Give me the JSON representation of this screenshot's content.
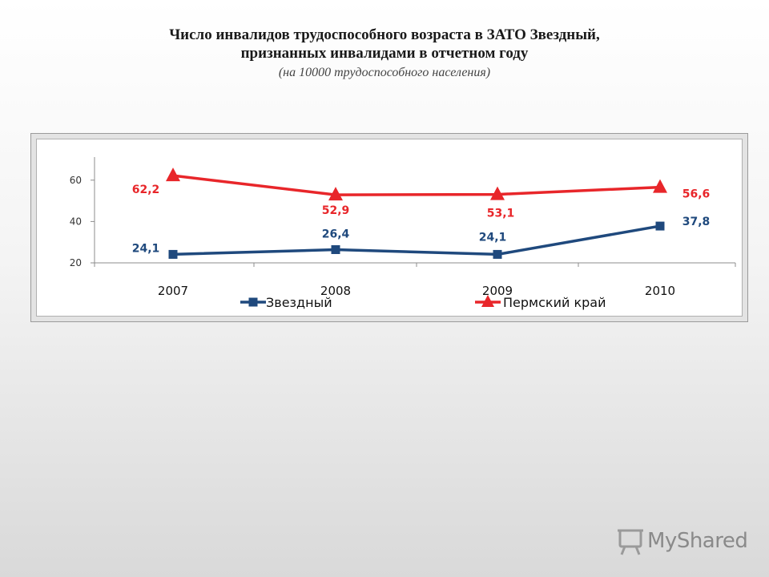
{
  "title": {
    "line1": "Число инвалидов трудоспособного возраста  в  ЗАТО Звездный,",
    "line2": "признанных инвалидами в отчетном году",
    "subtitle": "(на 10000 трудоспособного населения)"
  },
  "chart_data": {
    "type": "line",
    "categories": [
      "2007",
      "2008",
      "2009",
      "2010"
    ],
    "ylim": [
      20,
      70
    ],
    "yticks": [
      20,
      40,
      60
    ],
    "grid": false,
    "legend_position": "bottom",
    "series": [
      {
        "name": "Звездный",
        "values": [
          24.1,
          26.4,
          24.1,
          37.8
        ],
        "labels": [
          "24,1",
          "26,4",
          "24,1",
          "37,8"
        ],
        "color": "#1f497d",
        "marker": "square"
      },
      {
        "name": "Пермский край",
        "values": [
          62.2,
          52.9,
          53.1,
          56.6
        ],
        "labels": [
          "62,2",
          "52,9",
          "53,1",
          "56,6"
        ],
        "color": "#e8262a",
        "marker": "triangle"
      }
    ]
  },
  "watermark": {
    "text": "MyShared",
    "icon": "projector-screen-icon"
  }
}
